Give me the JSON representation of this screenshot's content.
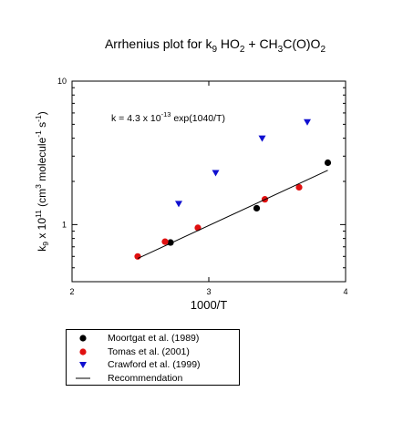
{
  "chart_data": {
    "type": "scatter",
    "title": "Arrhenius plot for k9 HO2 + CH3C(O)O2",
    "xlabel": "1000/T",
    "ylabel": "k9 x 10^11 (cm3 molecule-1 s-1)",
    "xlim": [
      2,
      4
    ],
    "ylim": [
      0.4,
      10
    ],
    "yscale": "log",
    "x_ticks": [
      2,
      3,
      4
    ],
    "x_tick_labels": [
      "2",
      "3",
      "4"
    ],
    "y_ticks": [
      1,
      10
    ],
    "y_tick_labels": [
      "1",
      "10"
    ],
    "annotation": "k = 4.3 x 10-13 exp(1040/T)",
    "grid": false,
    "legend_position": "below",
    "series": [
      {
        "name": "Moortgat et al. (1989)",
        "marker": "circle",
        "color": "#000000",
        "x": [
          2.72,
          3.35,
          3.87
        ],
        "y": [
          0.75,
          1.3,
          2.7
        ]
      },
      {
        "name": "Tomas et al. (2001)",
        "marker": "circle",
        "color": "#e01010",
        "x": [
          2.48,
          2.68,
          2.92,
          3.41,
          3.66
        ],
        "y": [
          0.6,
          0.76,
          0.95,
          1.5,
          1.82
        ]
      },
      {
        "name": "Crawford et al. (1999)",
        "marker": "triangle-down",
        "color": "#1010d0",
        "x": [
          2.78,
          3.05,
          3.39,
          3.72
        ],
        "y": [
          1.4,
          2.3,
          4.0,
          5.2
        ]
      },
      {
        "name": "Recommendation",
        "marker": "line",
        "color": "#000000",
        "x": [
          2.48,
          3.87
        ],
        "y": [
          0.58,
          2.39
        ]
      }
    ]
  }
}
